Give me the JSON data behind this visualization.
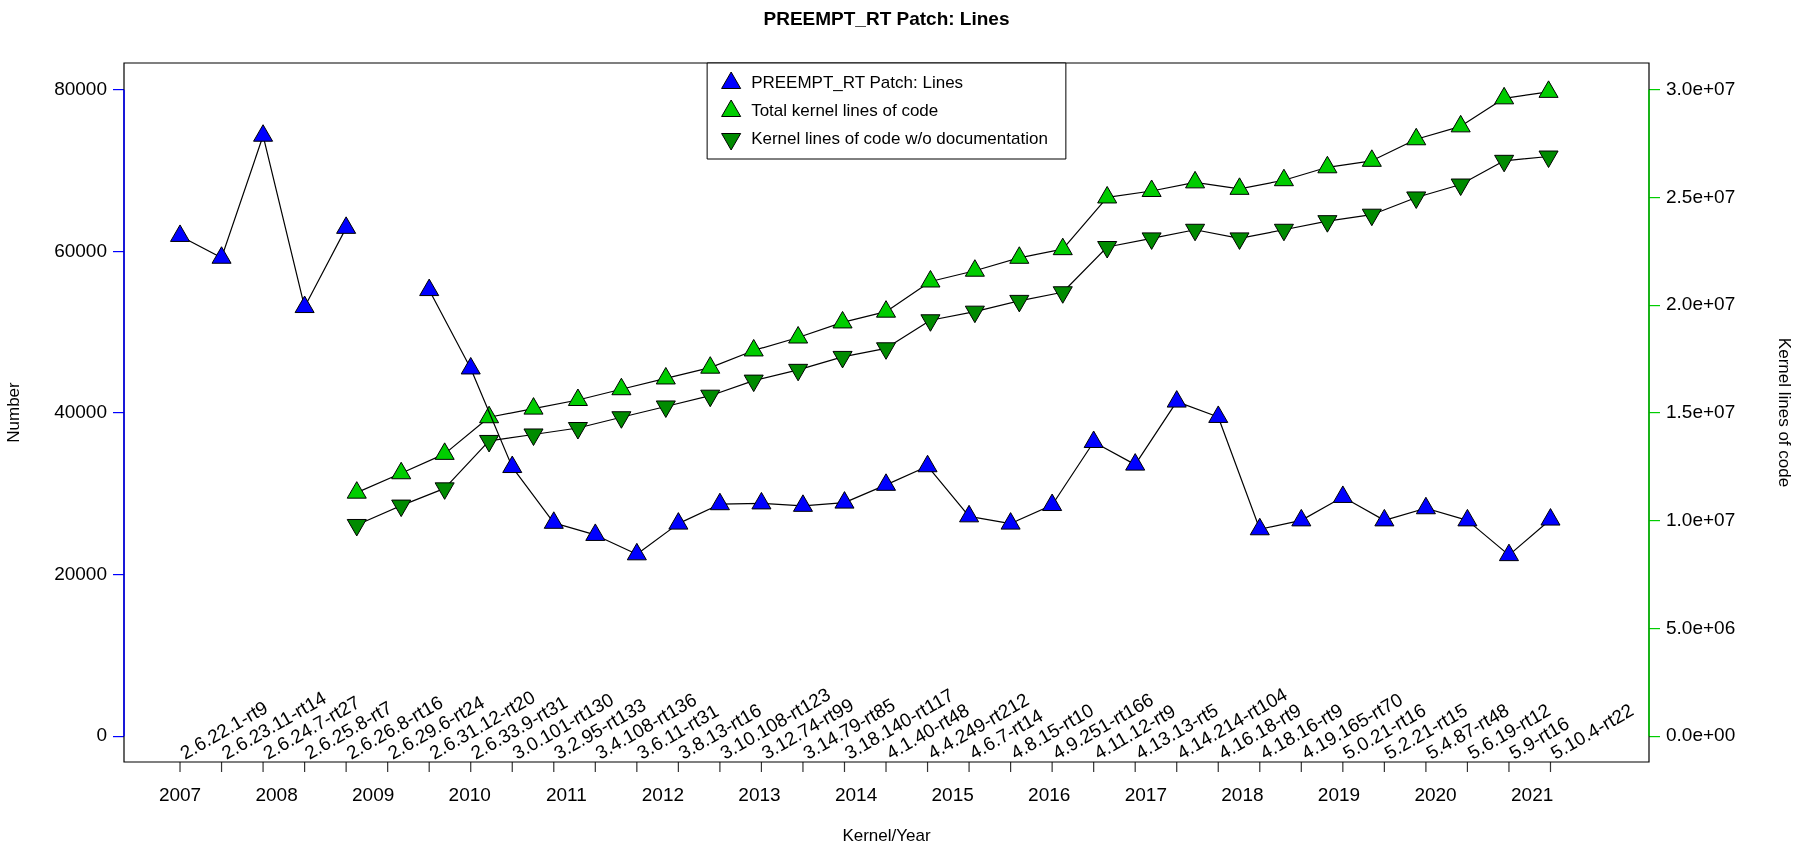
{
  "chart_data": {
    "type": "line",
    "title": "PREEMPT_RT Patch: Lines",
    "xlabel": "Kernel/Year",
    "ylabel": "Number",
    "y2label": "Kernel lines of code",
    "xlim": [
      2006.42,
      2022.21
    ],
    "xticks": [
      2007,
      2008,
      2009,
      2010,
      2011,
      2012,
      2013,
      2014,
      2015,
      2016,
      2017,
      2018,
      2019,
      2020,
      2021
    ],
    "ylim": [
      -3200,
      83300
    ],
    "yticks": [
      0,
      20000,
      40000,
      60000,
      80000
    ],
    "y2lim": [
      -1200000,
      31240000
    ],
    "y2ticks": [
      {
        "value": 0,
        "label": "0.0e+00"
      },
      {
        "value": 5000000,
        "label": "5.0e+06"
      },
      {
        "value": 10000000,
        "label": "1.0e+07"
      },
      {
        "value": 15000000,
        "label": "1.5e+07"
      },
      {
        "value": 20000000,
        "label": "2.0e+07"
      },
      {
        "value": 25000000,
        "label": "2.5e+07"
      },
      {
        "value": 30000000,
        "label": "3.0e+07"
      }
    ],
    "grid": false,
    "legend": "top",
    "line_style": "solid",
    "series": [
      {
        "name": "PREEMPT_RT Patch: Lines",
        "color": "#0000ff",
        "marker": "triangle",
        "x": [
          2007,
          2007.43,
          2007.86,
          2008.29,
          2008.72,
          2009.15,
          2009.58,
          2010.01,
          2010.44,
          2010.87,
          2011.3,
          2011.73,
          2012.16,
          2012.59,
          2013.02,
          2013.45,
          2013.88,
          2014.31,
          2014.74,
          2015.17,
          2015.6,
          2016.03,
          2016.46,
          2016.89,
          2017.32,
          2017.75,
          2018.18,
          2018.61,
          2019.04,
          2019.47,
          2019.9,
          2020.33,
          2020.76,
          2021.19
        ],
        "values": [
          61900,
          59200,
          74300,
          53100,
          62900,
          null,
          55200,
          45500,
          33300,
          26400,
          24900,
          22500,
          26300,
          28700,
          28800,
          28500,
          28900,
          31100,
          33400,
          27200,
          26300,
          28600,
          36400,
          33600,
          41400,
          39500,
          25600,
          26700,
          29600,
          26700,
          28200,
          26700,
          22400,
          26800
        ]
      },
      {
        "name": "Total kernel lines of code",
        "color": "#00cd00",
        "marker": "triangle",
        "axis": "y2",
        "x": [
          2008.83,
          2009.29,
          2009.74,
          2010.2,
          2010.66,
          2011.12,
          2011.57,
          2012.03,
          2012.49,
          2012.94,
          2013.4,
          2013.86,
          2014.31,
          2014.77,
          2015.23,
          2015.69,
          2016.14,
          2016.6,
          2017.06,
          2017.51,
          2017.97,
          2018.43,
          2018.88,
          2019.34,
          2019.8,
          2020.26,
          2020.71,
          2021.17
        ],
        "values": [
          11300000,
          12200000,
          13100000,
          14800000,
          15200000,
          15600000,
          16100000,
          16600000,
          17100000,
          17900000,
          18500000,
          19200000,
          19700000,
          21100000,
          21600000,
          22200000,
          22600000,
          25000000,
          25300000,
          25700000,
          25400000,
          25800000,
          26400000,
          26700000,
          27700000,
          28300000,
          29600000,
          29900000
        ]
      },
      {
        "name": "Kernel lines of code w/o documentation",
        "color": "#008b00",
        "marker": "triangle-down",
        "axis": "y2",
        "x": [
          2008.83,
          2009.29,
          2009.74,
          2010.2,
          2010.66,
          2011.12,
          2011.57,
          2012.03,
          2012.49,
          2012.94,
          2013.4,
          2013.86,
          2014.31,
          2014.77,
          2015.23,
          2015.69,
          2016.14,
          2016.6,
          2017.06,
          2017.51,
          2017.97,
          2018.43,
          2018.88,
          2019.34,
          2019.8,
          2020.26,
          2020.71,
          2021.17
        ],
        "values": [
          9800000,
          10700000,
          11500000,
          13700000,
          14000000,
          14300000,
          14800000,
          15300000,
          15800000,
          16500000,
          17000000,
          17600000,
          18000000,
          19300000,
          19700000,
          20200000,
          20600000,
          22700000,
          23100000,
          23500000,
          23100000,
          23500000,
          23900000,
          24200000,
          25000000,
          25600000,
          26700000,
          26900000
        ]
      }
    ],
    "annotations": [
      "2.6.22.1-rt9",
      "2.6.23.11-rt14",
      "2.6.24.7-rt27",
      "2.6.25.8-rt7",
      "2.6.26.8-rt16",
      "2.6.29.6-rt24",
      "2.6.31.12-rt20",
      "2.6.33.9-rt31",
      "3.0.101-rt130",
      "3.2.95-rt133",
      "3.4.108-rt136",
      "3.6.11-rt31",
      "3.8.13-rt16",
      "3.10.108-rt123",
      "3.12.74-rt99",
      "3.14.79-rt85",
      "3.18.140-rt117",
      "4.1.40-rt48",
      "4.4.249-rt212",
      "4.6.7-rt14",
      "4.8.15-rt10",
      "4.9.251-rt166",
      "4.11.12-rt9",
      "4.13.13-rt5",
      "4.14.214-rt104",
      "4.16.18-rt9",
      "4.18.16-rt9",
      "4.19.165-rt70",
      "5.0.21-rt16",
      "5.2.21-rt15",
      "5.4.87-rt48",
      "5.6.19-rt12",
      "5.9-rt16",
      "5.10.4-rt22"
    ]
  }
}
